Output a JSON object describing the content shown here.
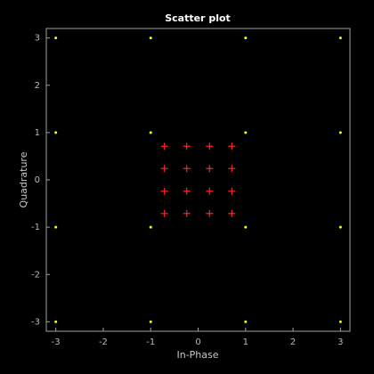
{
  "chart_data": {
    "type": "scatter",
    "title": "Scatter plot",
    "x_label": "In-Phase",
    "y_label": "Quadrature",
    "xlim": [
      -3.2,
      3.2
    ],
    "ylim": [
      -3.2,
      3.2
    ],
    "xticks": [
      -3,
      -2,
      -1,
      0,
      1,
      2,
      3
    ],
    "yticks": [
      -3,
      -2,
      -1,
      0,
      1,
      2,
      3
    ],
    "series": [
      {
        "color": "#ffff00",
        "marker": "dot",
        "x": [
          -3,
          -1,
          1,
          3,
          -3,
          -1,
          1,
          3,
          -3,
          -1,
          1,
          3,
          -3,
          -1,
          1,
          3
        ],
        "y": [
          3,
          3,
          3,
          3,
          1,
          1,
          1,
          1,
          -1,
          -1,
          -1,
          -1,
          -3,
          -3,
          -3,
          -3
        ]
      },
      {
        "color": "#ff2020",
        "marker": "plus",
        "x": [
          -0.71,
          -0.24,
          0.24,
          0.71,
          -0.71,
          -0.24,
          0.24,
          0.71,
          -0.71,
          -0.24,
          0.24,
          0.71,
          -0.71,
          -0.24,
          0.24,
          0.71
        ],
        "y": [
          0.71,
          0.71,
          0.71,
          0.71,
          0.24,
          0.24,
          0.24,
          0.24,
          -0.24,
          -0.24,
          -0.24,
          -0.24,
          -0.71,
          -0.71,
          -0.71,
          -0.71
        ]
      }
    ]
  }
}
